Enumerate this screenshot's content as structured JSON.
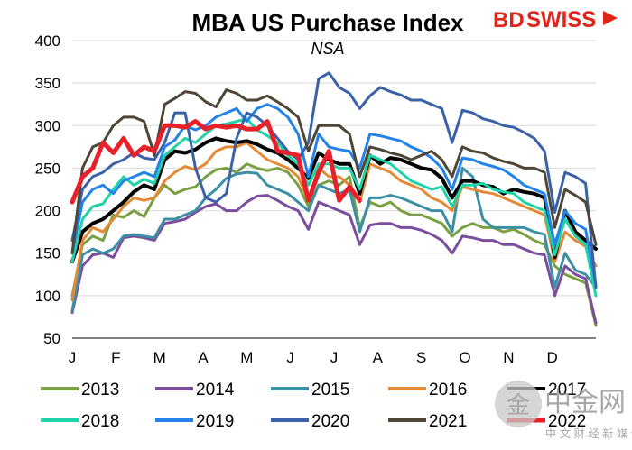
{
  "chart_data": {
    "type": "line",
    "title": "MBA US Purchase Index",
    "subtitle": "NSA",
    "ylim": [
      50,
      400
    ],
    "yticks": [
      50,
      100,
      150,
      200,
      250,
      300,
      350,
      400
    ],
    "x_tick_labels": [
      "J",
      "F",
      "M",
      "A",
      "M",
      "J",
      "J",
      "A",
      "S",
      "O",
      "N",
      "D"
    ],
    "x_weeks": 52,
    "grid": "horizontal",
    "legend_position": "bottom",
    "series": [
      {
        "name": "2013",
        "color": "#7aa043",
        "width": 3,
        "values": [
          100,
          160,
          170,
          165,
          195,
          192,
          200,
          193,
          215,
          230,
          220,
          225,
          228,
          240,
          248,
          250,
          245,
          255,
          250,
          247,
          250,
          245,
          230,
          205,
          230,
          235,
          230,
          240,
          180,
          210,
          205,
          210,
          200,
          195,
          195,
          190,
          185,
          170,
          180,
          185,
          180,
          180,
          175,
          178,
          172,
          165,
          160,
          135,
          125,
          120,
          115,
          65
        ]
      },
      {
        "name": "2014",
        "color": "#7a4e9c",
        "width": 3,
        "values": [
          80,
          135,
          148,
          150,
          145,
          168,
          170,
          168,
          165,
          185,
          187,
          190,
          198,
          205,
          208,
          200,
          200,
          210,
          217,
          218,
          212,
          205,
          200,
          178,
          210,
          205,
          200,
          195,
          160,
          183,
          185,
          185,
          180,
          180,
          177,
          172,
          165,
          150,
          170,
          168,
          165,
          165,
          160,
          160,
          155,
          150,
          148,
          100,
          135,
          125,
          120,
          68
        ]
      },
      {
        "name": "2015",
        "color": "#3d8fa6",
        "width": 3,
        "values": [
          82,
          148,
          155,
          150,
          155,
          170,
          172,
          170,
          168,
          190,
          190,
          195,
          200,
          215,
          225,
          238,
          243,
          245,
          244,
          230,
          225,
          220,
          210,
          200,
          230,
          225,
          220,
          225,
          175,
          215,
          215,
          218,
          215,
          210,
          205,
          200,
          200,
          175,
          250,
          240,
          190,
          180,
          180,
          180,
          180,
          175,
          172,
          110,
          150,
          130,
          125,
          110
        ]
      },
      {
        "name": "2016",
        "color": "#e58a34",
        "width": 3,
        "values": [
          95,
          165,
          180,
          175,
          190,
          205,
          215,
          212,
          215,
          235,
          245,
          252,
          248,
          255,
          270,
          275,
          275,
          280,
          270,
          260,
          255,
          250,
          240,
          212,
          250,
          240,
          240,
          230,
          210,
          255,
          250,
          245,
          235,
          230,
          225,
          215,
          210,
          200,
          228,
          225,
          222,
          220,
          215,
          210,
          205,
          200,
          195,
          140,
          175,
          165,
          158,
          135
        ]
      },
      {
        "name": "2017",
        "color": "#000000",
        "width": 4,
        "values": [
          140,
          175,
          185,
          190,
          200,
          210,
          222,
          230,
          225,
          260,
          270,
          268,
          272,
          280,
          285,
          282,
          280,
          282,
          278,
          272,
          268,
          260,
          250,
          238,
          268,
          260,
          255,
          255,
          220,
          265,
          255,
          262,
          260,
          255,
          250,
          248,
          238,
          215,
          235,
          235,
          230,
          228,
          220,
          225,
          222,
          220,
          215,
          145,
          200,
          175,
          165,
          155
        ]
      },
      {
        "name": "2018",
        "color": "#1fd4a8",
        "width": 3,
        "values": [
          140,
          190,
          205,
          208,
          225,
          240,
          230,
          237,
          232,
          265,
          275,
          285,
          280,
          290,
          300,
          302,
          305,
          308,
          295,
          288,
          280,
          265,
          255,
          230,
          255,
          255,
          250,
          250,
          225,
          265,
          260,
          255,
          245,
          235,
          230,
          225,
          228,
          205,
          230,
          230,
          232,
          225,
          222,
          220,
          210,
          205,
          200,
          148,
          190,
          170,
          160,
          100
        ]
      },
      {
        "name": "2019",
        "color": "#2383e8",
        "width": 3,
        "values": [
          150,
          210,
          225,
          230,
          220,
          235,
          240,
          245,
          240,
          275,
          283,
          300,
          295,
          300,
          310,
          315,
          320,
          305,
          320,
          325,
          320,
          310,
          290,
          240,
          290,
          275,
          272,
          270,
          250,
          290,
          288,
          285,
          282,
          275,
          270,
          262,
          250,
          225,
          262,
          260,
          255,
          252,
          248,
          240,
          230,
          225,
          220,
          160,
          200,
          185,
          178,
          112
        ]
      },
      {
        "name": "2020",
        "color": "#3b62a6",
        "width": 3,
        "values": [
          165,
          225,
          240,
          245,
          255,
          260,
          268,
          262,
          260,
          280,
          315,
          315,
          250,
          215,
          210,
          220,
          285,
          315,
          310,
          300,
          285,
          270,
          260,
          280,
          355,
          362,
          345,
          338,
          320,
          335,
          345,
          340,
          336,
          330,
          330,
          325,
          320,
          280,
          318,
          315,
          308,
          305,
          300,
          298,
          292,
          285,
          270,
          198,
          245,
          240,
          232,
          110
        ]
      },
      {
        "name": "2021",
        "color": "#4e4636",
        "width": 3,
        "values": [
          150,
          250,
          275,
          280,
          300,
          310,
          310,
          305,
          265,
          325,
          332,
          340,
          338,
          328,
          322,
          342,
          338,
          330,
          330,
          335,
          328,
          320,
          310,
          270,
          300,
          300,
          300,
          290,
          240,
          275,
          272,
          268,
          265,
          260,
          265,
          270,
          260,
          240,
          275,
          270,
          268,
          262,
          258,
          255,
          250,
          250,
          245,
          180,
          225,
          218,
          210,
          160
        ]
      },
      {
        "name": "2022",
        "color": "#e8202a",
        "width": 5,
        "values": [
          210,
          240,
          250,
          280,
          268,
          285,
          265,
          275,
          270,
          300,
          300,
          298,
          305,
          296,
          300,
          298,
          300,
          296,
          296,
          305,
          270,
          268,
          265,
          212,
          245,
          270,
          212,
          228,
          212
        ]
      }
    ]
  },
  "logo": {
    "text_bd": "BD",
    "text_swiss": "SWISS"
  },
  "watermark": {
    "glyph": "金",
    "cn": "中金网",
    "tagline": "中 文 财 经 新 媒 体"
  }
}
